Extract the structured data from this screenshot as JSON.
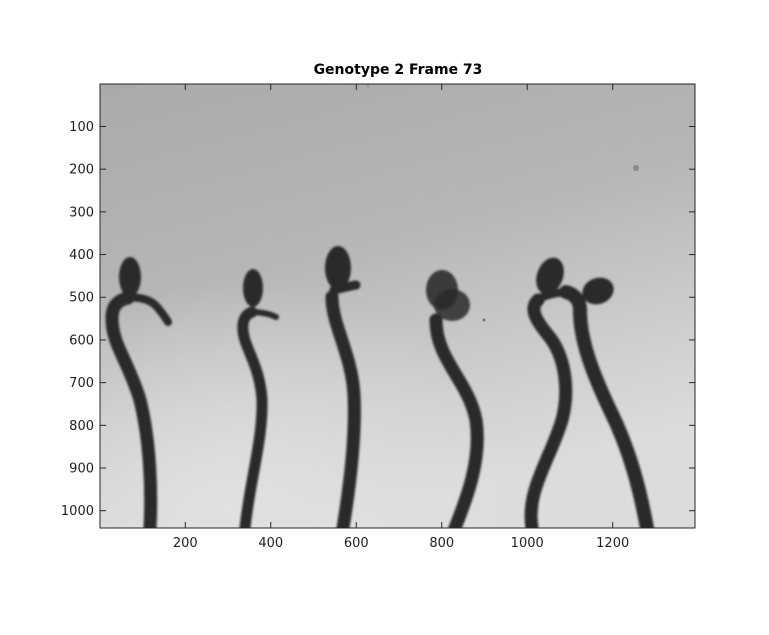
{
  "title": "Genotype 2 Frame 73",
  "x_axis": {
    "ticks": [
      200,
      400,
      600,
      800,
      1000,
      1200
    ],
    "range": [
      1,
      1392
    ]
  },
  "y_axis": {
    "ticks": [
      100,
      200,
      300,
      400,
      500,
      600,
      700,
      800,
      900,
      1000
    ],
    "range": [
      1,
      1040
    ],
    "direction": "reverse"
  },
  "image": {
    "description": "grayscale photograph",
    "colors": {
      "background_light": "#d4d4d4",
      "background_dark": "#a8a8a8",
      "seedling": "#2b2b2b"
    }
  }
}
